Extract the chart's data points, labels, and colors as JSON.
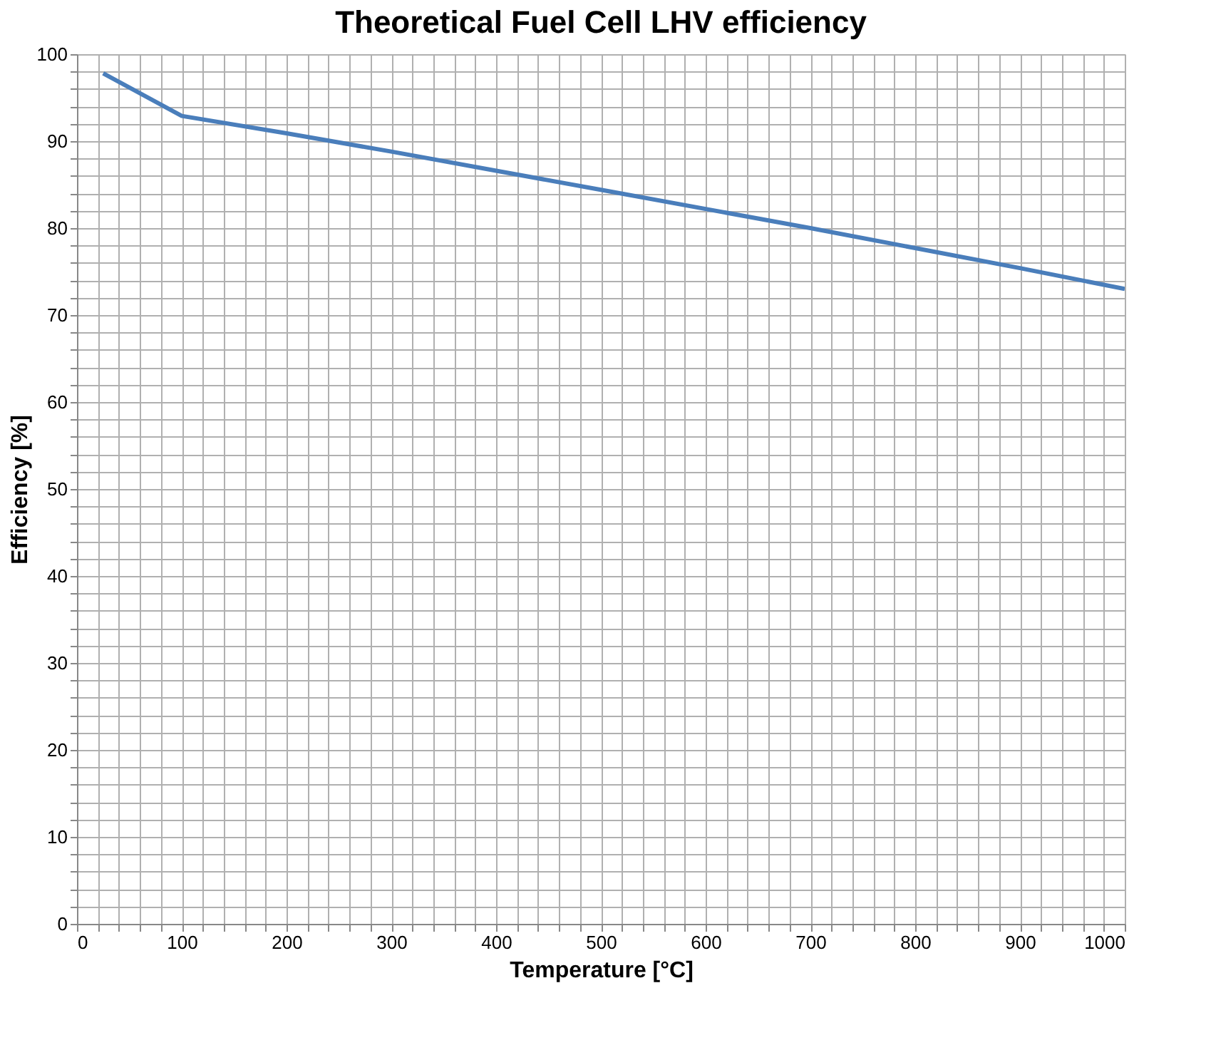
{
  "chart_data": {
    "type": "line",
    "title": "Theoretical Fuel Cell LHV efficiency",
    "xlabel": "Temperature [°C]",
    "ylabel": "Efficiency [%]",
    "x": [
      25,
      100,
      200,
      300,
      400,
      500,
      600,
      700,
      800,
      900,
      1000
    ],
    "series": [
      {
        "color": "#4a7ebb",
        "values": [
          97.8,
          92.9,
          90.9,
          88.8,
          86.6,
          84.4,
          82.2,
          80.0,
          77.7,
          75.4,
          73.0
        ]
      }
    ],
    "xlim": [
      0,
      1000
    ],
    "ylim": [
      0,
      100
    ],
    "xticks": [
      0,
      {
        "value": 20,
        "label": null
      },
      {
        "value": 40,
        "label": null
      },
      {
        "value": 60,
        "label": null
      },
      {
        "value": 80,
        "label": null
      },
      100,
      {
        "value": 120,
        "label": null
      },
      {
        "value": 140,
        "label": null
      },
      {
        "value": 160,
        "label": null
      },
      {
        "value": 180,
        "label": null
      },
      200,
      {
        "value": 220,
        "label": null
      },
      {
        "value": 240,
        "label": null
      },
      {
        "value": 260,
        "label": null
      },
      {
        "value": 280,
        "label": null
      },
      300,
      {
        "value": 320,
        "label": null
      },
      {
        "value": 340,
        "label": null
      },
      {
        "value": 360,
        "label": null
      },
      {
        "value": 380,
        "label": null
      },
      400,
      {
        "value": 420,
        "label": null
      },
      {
        "value": 440,
        "label": null
      },
      {
        "value": 460,
        "label": null
      },
      {
        "value": 480,
        "label": null
      },
      500,
      {
        "value": 520,
        "label": null
      },
      {
        "value": 540,
        "label": null
      },
      {
        "value": 560,
        "label": null
      },
      {
        "value": 580,
        "label": null
      },
      600,
      {
        "value": 620,
        "label": null
      },
      {
        "value": 640,
        "label": null
      },
      {
        "value": 660,
        "label": null
      },
      {
        "value": 680,
        "label": null
      },
      700,
      {
        "value": 720,
        "label": null
      },
      {
        "value": 740,
        "label": null
      },
      {
        "value": 760,
        "label": null
      },
      {
        "value": 780,
        "label": null
      },
      800,
      {
        "value": 820,
        "label": null
      },
      {
        "value": 840,
        "label": null
      },
      {
        "value": 860,
        "label": null
      },
      {
        "value": 880,
        "label": null
      },
      900,
      {
        "value": 920,
        "label": null
      },
      {
        "value": 940,
        "label": null
      },
      {
        "value": 960,
        "label": null
      },
      {
        "value": 980,
        "label": null
      },
      1000
    ],
    "yticks": [
      0,
      {
        "value": 2,
        "label": null
      },
      {
        "value": 4,
        "label": null
      },
      {
        "value": 6,
        "label": null
      },
      {
        "value": 8,
        "label": null
      },
      10,
      {
        "value": 12,
        "label": null
      },
      {
        "value": 14,
        "label": null
      },
      {
        "value": 16,
        "label": null
      },
      {
        "value": 18,
        "label": null
      },
      20,
      {
        "value": 22,
        "label": null
      },
      {
        "value": 24,
        "label": null
      },
      {
        "value": 26,
        "label": null
      },
      {
        "value": 28,
        "label": null
      },
      30,
      {
        "value": 32,
        "label": null
      },
      {
        "value": 34,
        "label": null
      },
      {
        "value": 36,
        "label": null
      },
      {
        "value": 38,
        "label": null
      },
      40,
      {
        "value": 42,
        "label": null
      },
      {
        "value": 44,
        "label": null
      },
      {
        "value": 46,
        "label": null
      },
      {
        "value": 48,
        "label": null
      },
      50,
      {
        "value": 52,
        "label": null
      },
      {
        "value": 54,
        "label": null
      },
      {
        "value": 56,
        "label": null
      },
      {
        "value": 58,
        "label": null
      },
      60,
      {
        "value": 62,
        "label": null
      },
      {
        "value": 64,
        "label": null
      },
      {
        "value": 66,
        "label": null
      },
      {
        "value": 68,
        "label": null
      },
      70,
      {
        "value": 72,
        "label": null
      },
      {
        "value": 74,
        "label": null
      },
      {
        "value": 76,
        "label": null
      },
      {
        "value": 78,
        "label": null
      },
      80,
      {
        "value": 82,
        "label": null
      },
      {
        "value": 84,
        "label": null
      },
      {
        "value": 86,
        "label": null
      },
      {
        "value": 88,
        "label": null
      },
      90,
      {
        "value": 92,
        "label": null
      },
      {
        "value": 94,
        "label": null
      },
      {
        "value": 96,
        "label": null
      },
      {
        "value": 98,
        "label": null
      },
      100
    ],
    "grid": true,
    "line_style": "solid",
    "marker": "none"
  }
}
